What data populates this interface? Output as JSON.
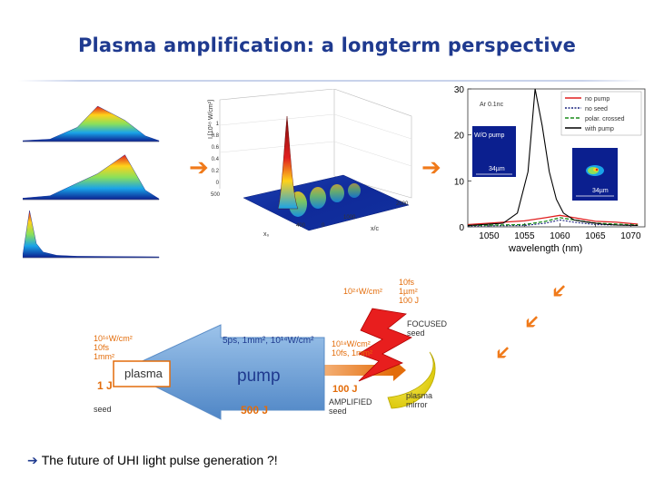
{
  "slide": {
    "title": "Plasma amplification: a longterm perspective",
    "footer_arrow": "➔",
    "footer_text": "The future of UHI light pulse generation ?!"
  },
  "panels": {
    "plot3d": {
      "z_axis_label": "I [10¹⁸ W/cm²]",
      "z_ticks": [
        "1",
        "0.8",
        "0.6",
        "0.4",
        "0.2",
        "0"
      ],
      "x_axis_label": "x₀",
      "y_axis_label": "x/c",
      "x_ticks": [
        "500",
        "400",
        "0"
      ],
      "y_ticks": [
        "2000",
        "1000",
        "0"
      ]
    },
    "spectrum": {
      "annotation_top": "Ar 0.1nc",
      "inset_left_label": "W/O pump",
      "inset_left_scale": "34µm",
      "inset_right_scale": "34µm",
      "x_label": "wavelength (nm)",
      "legend": [
        "no pump",
        "no seed",
        "polar. crossed",
        "with pump"
      ],
      "legend_colors": [
        "#e02020",
        "#1a237e",
        "#1a8c1a",
        "#000000"
      ]
    },
    "schematic": {
      "seed_params": "10¹⁶W/cm²\n10fs\n1mm²",
      "seed_energy": "1 J",
      "seed_label": "seed",
      "plasma_label": "plasma",
      "pump_label": "pump",
      "pump_params": "5ps, 1mm², 10¹⁴W/cm²",
      "pump_energy": "500 J",
      "amplified_params": "10¹⁸W/cm²\n10fs, 1mm²",
      "amplified_energy": "100 J",
      "amplified_label": "AMPLIFIED\nseed",
      "focused_params_left": "10²⁴W/cm²",
      "focused_params_right": "10fs\n1µm²\n100 J",
      "focused_label": "FOCUSED\nseed",
      "mirror_label": "plasma\nmirror"
    }
  },
  "chart_data": [
    {
      "type": "line",
      "ylim": [
        0,
        30
      ],
      "xlim": [
        1047,
        1072
      ],
      "xlabel": "wavelength (nm)",
      "yticks": [
        0,
        10,
        20,
        30
      ],
      "xticks": [
        1050,
        1055,
        1060,
        1065,
        1070
      ],
      "series": [
        {
          "name": "no pump",
          "x": [
            1047,
            1052,
            1055,
            1058,
            1060,
            1062,
            1065,
            1068,
            1071
          ],
          "y": [
            0.5,
            1.0,
            1.3,
            2.0,
            2.5,
            2.0,
            1.2,
            1.0,
            0.6
          ]
        },
        {
          "name": "no seed",
          "x": [
            1047,
            1055,
            1058,
            1060,
            1062,
            1065,
            1071
          ],
          "y": [
            0.2,
            0.3,
            0.8,
            1.5,
            1.0,
            0.5,
            0.3
          ]
        },
        {
          "name": "polar. crossed",
          "x": [
            1047,
            1055,
            1058,
            1060,
            1062,
            1065,
            1071
          ],
          "y": [
            0.3,
            0.5,
            1.2,
            2.0,
            1.5,
            0.8,
            0.4
          ]
        },
        {
          "name": "with pump",
          "x": [
            1047,
            1052,
            1054,
            1055.5,
            1056.5,
            1057.5,
            1058.5,
            1059.5,
            1060.5,
            1062,
            1064,
            1066,
            1068,
            1071
          ],
          "y": [
            0.3,
            0.8,
            3,
            12,
            30,
            22,
            12,
            6,
            3,
            1.5,
            1.0,
            0.6,
            0.4,
            0.3
          ]
        }
      ]
    },
    {
      "type": "area",
      "series": [
        {
          "x": [
            0,
            0.2,
            0.4,
            0.55,
            0.75,
            0.9,
            1
          ],
          "y": [
            0.02,
            0.05,
            0.3,
            0.75,
            0.45,
            0.12,
            0.02
          ]
        },
        {
          "x": [
            0,
            0.2,
            0.4,
            0.55,
            0.75,
            0.9,
            1
          ],
          "y": [
            0.03,
            0.08,
            0.35,
            0.55,
            0.95,
            0.2,
            0.02
          ]
        },
        {
          "x": [
            0,
            0.05,
            0.1,
            0.15,
            0.25,
            0.4,
            1
          ],
          "y": [
            0.05,
            1.0,
            0.3,
            0.12,
            0.05,
            0.03,
            0.02
          ]
        }
      ]
    }
  ]
}
